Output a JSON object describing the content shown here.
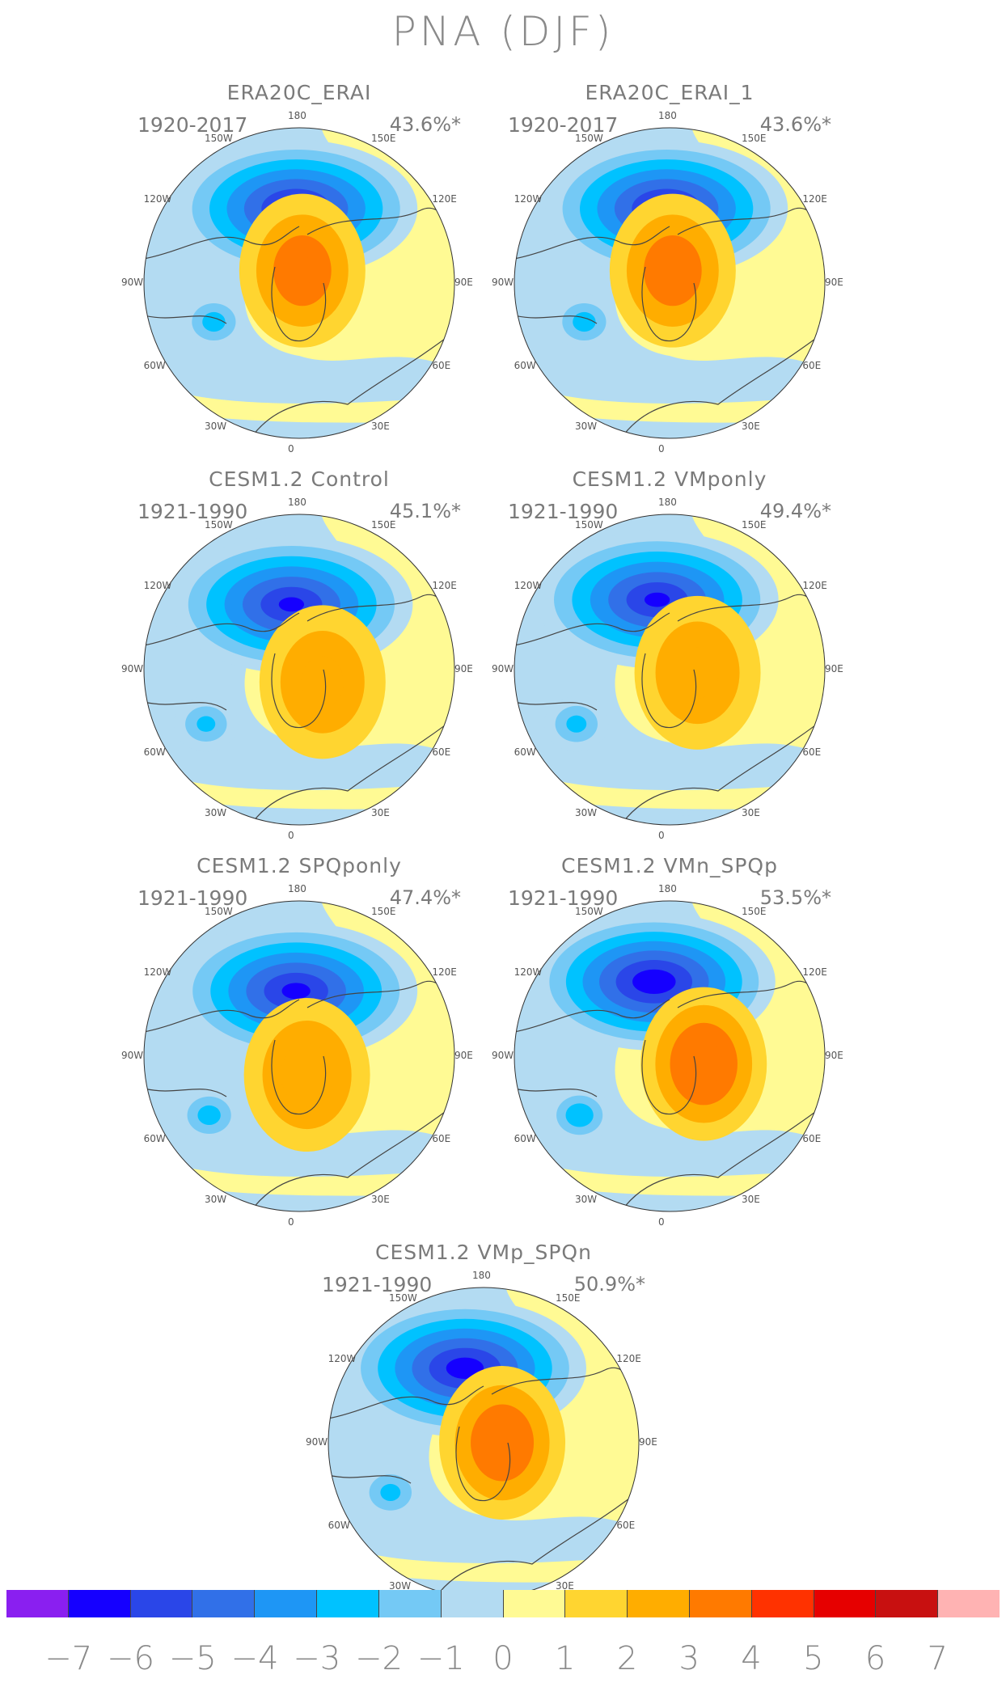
{
  "title": "PNA (DJF)",
  "longitude_labels": [
    "180",
    "150E",
    "120E",
    "90E",
    "60E",
    "30E",
    "0",
    "30W",
    "60W",
    "90W",
    "120W",
    "150W"
  ],
  "panels": [
    {
      "id": "era20c-erai",
      "title": "ERA20C_ERAI",
      "period": "1920-2017",
      "variance": "43.6%*",
      "low": {
        "dx": -0.02,
        "dy": -0.48,
        "strength": 6.5
      },
      "high": {
        "dx": 0.02,
        "dy": -0.08,
        "strength": 3.2
      },
      "atlantic_low": {
        "dx": -0.55,
        "dy": 0.25,
        "strength": 2.6
      }
    },
    {
      "id": "era20c-erai-1",
      "title": "ERA20C_ERAI_1",
      "period": "1920-2017",
      "variance": "43.6%*",
      "low": {
        "dx": -0.02,
        "dy": -0.48,
        "strength": 6.5
      },
      "high": {
        "dx": 0.02,
        "dy": -0.08,
        "strength": 3.2
      },
      "atlantic_low": {
        "dx": -0.55,
        "dy": 0.25,
        "strength": 2.6
      }
    },
    {
      "id": "cesm-control",
      "title": "CESM1.2 Control",
      "period": "1921-1990",
      "variance": "45.1%*",
      "low": {
        "dx": -0.05,
        "dy": -0.42,
        "strength": 6.2
      },
      "high": {
        "dx": 0.15,
        "dy": 0.08,
        "strength": 2.5
      },
      "atlantic_low": {
        "dx": -0.6,
        "dy": 0.35,
        "strength": 2.3
      }
    },
    {
      "id": "cesm-vmponly",
      "title": "CESM1.2 VMponly",
      "period": "1921-1990",
      "variance": "49.4%*",
      "low": {
        "dx": -0.08,
        "dy": -0.45,
        "strength": 6.2
      },
      "high": {
        "dx": 0.18,
        "dy": 0.02,
        "strength": 2.5
      },
      "atlantic_low": {
        "dx": -0.6,
        "dy": 0.35,
        "strength": 2.4
      }
    },
    {
      "id": "cesm-spqponly",
      "title": "CESM1.2 SPQponly",
      "period": "1921-1990",
      "variance": "47.4%*",
      "low": {
        "dx": -0.02,
        "dy": -0.42,
        "strength": 6.3
      },
      "high": {
        "dx": 0.05,
        "dy": 0.12,
        "strength": 2.9
      },
      "atlantic_low": {
        "dx": -0.58,
        "dy": 0.38,
        "strength": 2.6
      }
    },
    {
      "id": "cesm-vmn-spqp",
      "title": "CESM1.2 VMn_SPQp",
      "period": "1921-1990",
      "variance": "53.5%*",
      "low": {
        "dx": -0.1,
        "dy": -0.48,
        "strength": 6.8
      },
      "high": {
        "dx": 0.22,
        "dy": 0.05,
        "strength": 3.8
      },
      "atlantic_low": {
        "dx": -0.58,
        "dy": 0.38,
        "strength": 3.0
      }
    },
    {
      "id": "cesm-vmp-spqn",
      "title": "CESM1.2 VMp_SPQn",
      "period": "1921-1990",
      "variance": "50.9%*",
      "low": {
        "dx": -0.12,
        "dy": -0.48,
        "strength": 6.6
      },
      "high": {
        "dx": 0.12,
        "dy": 0.0,
        "strength": 3.5
      },
      "atlantic_low": {
        "dx": -0.6,
        "dy": 0.32,
        "strength": 2.4
      }
    }
  ],
  "colorbar": {
    "colors": [
      "#8a1ff0",
      "#1500ff",
      "#2a46e8",
      "#3170e8",
      "#1e96f5",
      "#00c2ff",
      "#74c9f5",
      "#b3dbf2",
      "#fffa94",
      "#ffd530",
      "#ffad00",
      "#ff7a00",
      "#ff3200",
      "#e60000",
      "#c81010",
      "#ffb3b3"
    ],
    "labels": [
      "−7",
      "−6",
      "−5",
      "−4",
      "−3",
      "−2",
      "−1",
      "0",
      "1",
      "2",
      "3",
      "4",
      "5",
      "6",
      "7"
    ]
  }
}
